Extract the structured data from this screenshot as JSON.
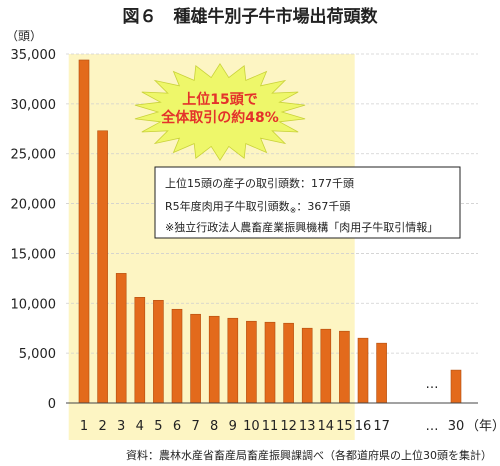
{
  "chart_data": {
    "type": "bar",
    "title": "図６　種雄牛別子牛市場出荷頭数",
    "y_unit": "（頭）",
    "x_unit": "（年）",
    "ylim": [
      0,
      35000
    ],
    "y_ticks": [
      "0",
      "5,000",
      "10,000",
      "15,000",
      "20,000",
      "25,000",
      "30,000",
      "35,000"
    ],
    "y_tick_values": [
      0,
      5000,
      10000,
      15000,
      20000,
      25000,
      30000,
      35000
    ],
    "categories": [
      "1",
      "2",
      "3",
      "4",
      "5",
      "6",
      "7",
      "8",
      "9",
      "10",
      "11",
      "12",
      "13",
      "14",
      "15",
      "16",
      "17",
      "30"
    ],
    "values": [
      34400,
      27300,
      13000,
      10600,
      10300,
      9400,
      8900,
      8700,
      8500,
      8200,
      8100,
      8000,
      7500,
      7400,
      7200,
      6500,
      6000,
      3300
    ],
    "ellipsis": "…",
    "x_ellipsis": "…",
    "highlight_range": [
      1,
      15
    ],
    "colors": {
      "bar": "#e36a1c",
      "bar_stroke": "#b24e0e",
      "highlight_bg": "#fdf5c3",
      "burst_fill": "#eef76a",
      "burst_text": "#e4322b"
    }
  },
  "callout": {
    "line1": "上位15頭で",
    "line2": "全体取引の約48%"
  },
  "notes": {
    "line1": "上位15頭の産子の取引頭数：177千頭",
    "line2_main": "R5年度肉用子牛取引頭数",
    "line2_mark": "※",
    "line2_value": "：367千頭",
    "line3": "※独立行政法人農畜産業振興機構「肉用子牛取引情報」"
  },
  "source": "資料：農林水産省畜産局畜産振興課調べ（各都道府県の上位30頭を集計）"
}
